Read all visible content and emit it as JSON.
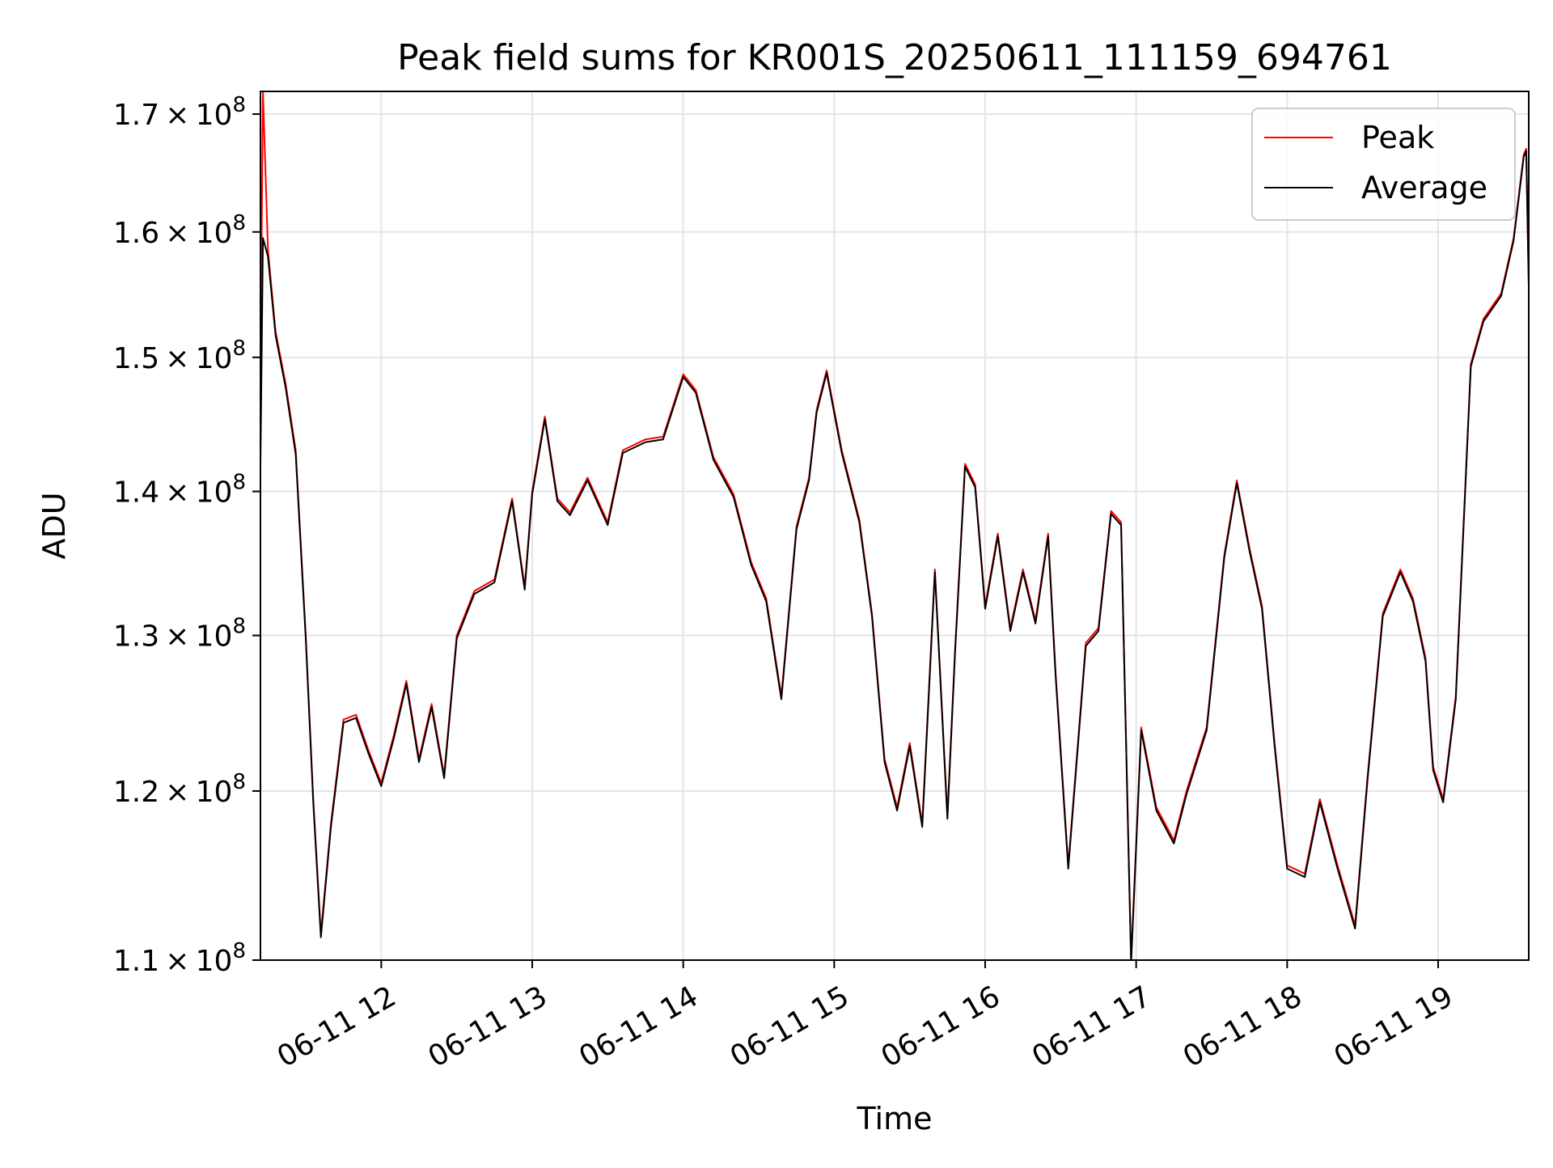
{
  "chart_data": {
    "type": "line",
    "title": "Peak field sums for KR001S_20250611_111159_694761",
    "xlabel": "Time",
    "ylabel": "ADU",
    "yscale": "log",
    "xlim": [
      "2025-06-11 11:12",
      "2025-06-11 19:36"
    ],
    "ylim": [
      110000000,
      172000000
    ],
    "grid": true,
    "legend_position": "top-right",
    "x_ticks": [
      {
        "label": "06-11 12",
        "value": "2025-06-11 12:00"
      },
      {
        "label": "06-11 13",
        "value": "2025-06-11 13:00"
      },
      {
        "label": "06-11 14",
        "value": "2025-06-11 14:00"
      },
      {
        "label": "06-11 15",
        "value": "2025-06-11 15:00"
      },
      {
        "label": "06-11 16",
        "value": "2025-06-11 16:00"
      },
      {
        "label": "06-11 17",
        "value": "2025-06-11 17:00"
      },
      {
        "label": "06-11 18",
        "value": "2025-06-11 18:00"
      },
      {
        "label": "06-11 19",
        "value": "2025-06-11 19:00"
      }
    ],
    "y_ticks": [
      {
        "mantissa": "1.1",
        "value": 110000000
      },
      {
        "mantissa": "1.2",
        "value": 120000000
      },
      {
        "mantissa": "1.3",
        "value": 130000000
      },
      {
        "mantissa": "1.4",
        "value": 140000000
      },
      {
        "mantissa": "1.5",
        "value": 150000000
      },
      {
        "mantissa": "1.6",
        "value": 160000000
      },
      {
        "mantissa": "1.7",
        "value": 170000000
      }
    ],
    "y_tick_base": "10",
    "y_tick_exponent": "8",
    "x": [
      "2025-06-11 11:12",
      "2025-06-11 11:13",
      "2025-06-11 11:15",
      "2025-06-11 11:18",
      "2025-06-11 11:22",
      "2025-06-11 11:26",
      "2025-06-11 11:30",
      "2025-06-11 11:33",
      "2025-06-11 11:36",
      "2025-06-11 11:40",
      "2025-06-11 11:45",
      "2025-06-11 11:50",
      "2025-06-11 11:55",
      "2025-06-11 12:00",
      "2025-06-11 12:05",
      "2025-06-11 12:10",
      "2025-06-11 12:15",
      "2025-06-11 12:20",
      "2025-06-11 12:25",
      "2025-06-11 12:30",
      "2025-06-11 12:37",
      "2025-06-11 12:45",
      "2025-06-11 12:52",
      "2025-06-11 12:57",
      "2025-06-11 13:00",
      "2025-06-11 13:05",
      "2025-06-11 13:10",
      "2025-06-11 13:15",
      "2025-06-11 13:22",
      "2025-06-11 13:30",
      "2025-06-11 13:36",
      "2025-06-11 13:45",
      "2025-06-11 13:52",
      "2025-06-11 14:00",
      "2025-06-11 14:05",
      "2025-06-11 14:12",
      "2025-06-11 14:20",
      "2025-06-11 14:27",
      "2025-06-11 14:33",
      "2025-06-11 14:39",
      "2025-06-11 14:45",
      "2025-06-11 14:50",
      "2025-06-11 14:53",
      "2025-06-11 14:57",
      "2025-06-11 15:03",
      "2025-06-11 15:10",
      "2025-06-11 15:15",
      "2025-06-11 15:20",
      "2025-06-11 15:25",
      "2025-06-11 15:30",
      "2025-06-11 15:35",
      "2025-06-11 15:40",
      "2025-06-11 15:45",
      "2025-06-11 15:48",
      "2025-06-11 15:52",
      "2025-06-11 15:56",
      "2025-06-11 16:00",
      "2025-06-11 16:05",
      "2025-06-11 16:10",
      "2025-06-11 16:15",
      "2025-06-11 16:20",
      "2025-06-11 16:25",
      "2025-06-11 16:28",
      "2025-06-11 16:33",
      "2025-06-11 16:40",
      "2025-06-11 16:45",
      "2025-06-11 16:50",
      "2025-06-11 16:54",
      "2025-06-11 16:58",
      "2025-06-11 17:02",
      "2025-06-11 17:08",
      "2025-06-11 17:15",
      "2025-06-11 17:20",
      "2025-06-11 17:28",
      "2025-06-11 17:35",
      "2025-06-11 17:40",
      "2025-06-11 17:45",
      "2025-06-11 17:50",
      "2025-06-11 17:55",
      "2025-06-11 18:00",
      "2025-06-11 18:07",
      "2025-06-11 18:13",
      "2025-06-11 18:20",
      "2025-06-11 18:27",
      "2025-06-11 18:32",
      "2025-06-11 18:38",
      "2025-06-11 18:45",
      "2025-06-11 18:50",
      "2025-06-11 18:55",
      "2025-06-11 18:58",
      "2025-06-11 19:02",
      "2025-06-11 19:07",
      "2025-06-11 19:13",
      "2025-06-11 19:18",
      "2025-06-11 19:25",
      "2025-06-11 19:30",
      "2025-06-11 19:34",
      "2025-06-11 19:35",
      "2025-06-11 19:36"
    ],
    "series": [
      {
        "name": "Peak",
        "color": "#ff0000",
        "values": [
          149000000,
          172000000,
          158500000,
          152000000,
          148000000,
          143000000,
          130000000,
          119500000,
          111500000,
          118000000,
          124500000,
          124800000,
          122500000,
          120500000,
          123500000,
          127000000,
          122000000,
          125500000,
          121000000,
          130000000,
          133000000,
          133800000,
          139500000,
          133300000,
          140000000,
          145500000,
          139500000,
          138500000,
          141000000,
          137800000,
          143000000,
          143800000,
          144000000,
          148700000,
          147500000,
          142500000,
          139800000,
          135000000,
          132500000,
          126000000,
          137500000,
          141000000,
          146000000,
          149000000,
          143000000,
          138000000,
          131500000,
          122000000,
          119000000,
          123000000,
          118000000,
          134500000,
          118500000,
          129000000,
          142000000,
          140500000,
          132000000,
          137000000,
          130500000,
          134500000,
          131000000,
          137000000,
          127500000,
          115500000,
          129500000,
          130500000,
          138600000,
          137800000,
          110000000,
          124000000,
          119000000,
          117000000,
          120000000,
          124000000,
          135500000,
          140800000,
          136000000,
          132000000,
          123000000,
          115500000,
          115000000,
          119500000,
          115500000,
          112000000,
          121000000,
          131500000,
          134500000,
          132500000,
          128500000,
          121500000,
          119500000,
          126000000,
          149500000,
          153000000,
          155000000,
          159500000,
          166500000,
          167000000,
          155500000
        ]
      },
      {
        "name": "Average",
        "color": "#000000",
        "values": [
          142000000,
          159500000,
          158000000,
          151700000,
          147700000,
          142700000,
          129800000,
          119300000,
          111300000,
          117800000,
          124300000,
          124600000,
          122300000,
          120300000,
          123300000,
          126800000,
          121800000,
          125300000,
          120800000,
          129800000,
          132800000,
          133600000,
          139300000,
          133100000,
          139800000,
          145300000,
          139300000,
          138300000,
          140800000,
          137600000,
          142800000,
          143600000,
          143800000,
          148500000,
          147300000,
          142300000,
          139600000,
          134800000,
          132300000,
          125800000,
          137300000,
          140800000,
          145800000,
          148800000,
          142800000,
          137800000,
          131300000,
          121800000,
          118800000,
          122800000,
          117800000,
          134300000,
          118300000,
          128800000,
          141800000,
          140300000,
          131800000,
          136800000,
          130300000,
          134300000,
          130800000,
          136800000,
          127300000,
          115300000,
          129300000,
          130300000,
          138400000,
          137600000,
          109800000,
          123800000,
          118800000,
          116800000,
          119800000,
          123800000,
          135300000,
          140600000,
          135800000,
          131800000,
          122800000,
          115300000,
          114800000,
          119300000,
          115300000,
          111800000,
          120800000,
          131300000,
          134300000,
          132300000,
          128300000,
          121300000,
          119300000,
          125800000,
          149300000,
          152800000,
          154800000,
          159300000,
          166300000,
          166800000,
          155800000
        ]
      }
    ]
  }
}
